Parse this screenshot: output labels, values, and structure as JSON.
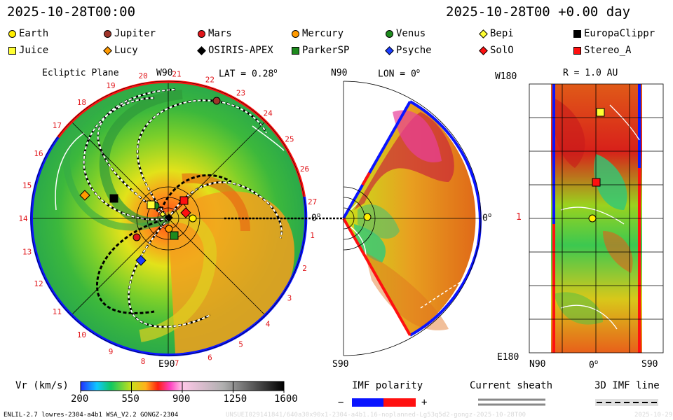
{
  "header": {
    "datetime_left": "2025-10-28T00:00",
    "datetime_right": "2025-10-28T00 +0.00 day"
  },
  "legend": {
    "items": [
      {
        "name": "Earth",
        "shape": "circle",
        "color": "#ffee00"
      },
      {
        "name": "Jupiter",
        "shape": "circle",
        "color": "#a0352a"
      },
      {
        "name": "Mars",
        "shape": "circle",
        "color": "#e0151a"
      },
      {
        "name": "Mercury",
        "shape": "circle",
        "color": "#ff9a00"
      },
      {
        "name": "Venus",
        "shape": "circle",
        "color": "#1e8a1e"
      },
      {
        "name": "Bepi",
        "shape": "diamond",
        "color": "#ffff33"
      },
      {
        "name": "EuropaClippr",
        "shape": "square",
        "color": "#000000"
      },
      {
        "name": "Juice",
        "shape": "square",
        "color": "#ffff33"
      },
      {
        "name": "Lucy",
        "shape": "diamond",
        "color": "#ff9a00"
      },
      {
        "name": "OSIRIS-APEX",
        "shape": "diamond",
        "color": "#000000"
      },
      {
        "name": "ParkerSP",
        "shape": "square",
        "color": "#1e8a1e"
      },
      {
        "name": "Psyche",
        "shape": "diamond",
        "color": "#1a3cff"
      },
      {
        "name": "SolO",
        "shape": "diamond",
        "color": "#ff1010"
      },
      {
        "name": "Stereo_A",
        "shape": "square",
        "color": "#ff1010"
      }
    ]
  },
  "ecliptic": {
    "title": "Ecliptic Plane",
    "top_label": "W90",
    "bottom_label": "E90",
    "lat_label": "LAT = 0.28",
    "lat_sup": "o",
    "zero_label": "0",
    "zero_sup": "o",
    "carrington_ticks": [
      "20",
      "21",
      "22",
      "23",
      "24",
      "25",
      "26",
      "27",
      "1",
      "2",
      "3",
      "4",
      "5",
      "6",
      "7",
      "8",
      "9",
      "10",
      "11",
      "12",
      "13",
      "14",
      "15",
      "16",
      "17",
      "18",
      "19"
    ]
  },
  "meridional": {
    "top_label": "N90",
    "bottom_label": "S90",
    "lon_label": "LON = 0",
    "lon_sup": "o",
    "right_label": "0",
    "right_sup": "o"
  },
  "rpanel": {
    "title": "R = 1.0 AU",
    "top_left": "W180",
    "bottom_left": "E180",
    "mid_left": "1",
    "bottom_n90": "N90",
    "bottom_0": "0",
    "bottom_0_sup": "o",
    "bottom_s90": "S90"
  },
  "colorbar": {
    "label": "Vr (km/s)",
    "ticks": [
      "200",
      "550",
      "900",
      "1250",
      "1600"
    ],
    "range": [
      200,
      1600
    ],
    "tick_values": [
      200,
      550,
      900,
      1250,
      1600
    ]
  },
  "imf_polarity": {
    "label": "IMF polarity",
    "minus": "−",
    "plus": "+",
    "neg_color": "#0a14ff",
    "pos_color": "#ff1010"
  },
  "current_sheath": {
    "label": "Current sheath"
  },
  "imf_line": {
    "label": "3D IMF line"
  },
  "footer": {
    "model": "ENLIL-2.7 lowres-2304-a4b1 WSA_V2.2 GONGZ-2304",
    "run_id": "UNSUEI029141841/640a30x90x1-2304-a4b1.16-noplanned-Lg53q5d2-gongz-2025-10-28T00",
    "date_stamp": "2025-10-29"
  }
}
